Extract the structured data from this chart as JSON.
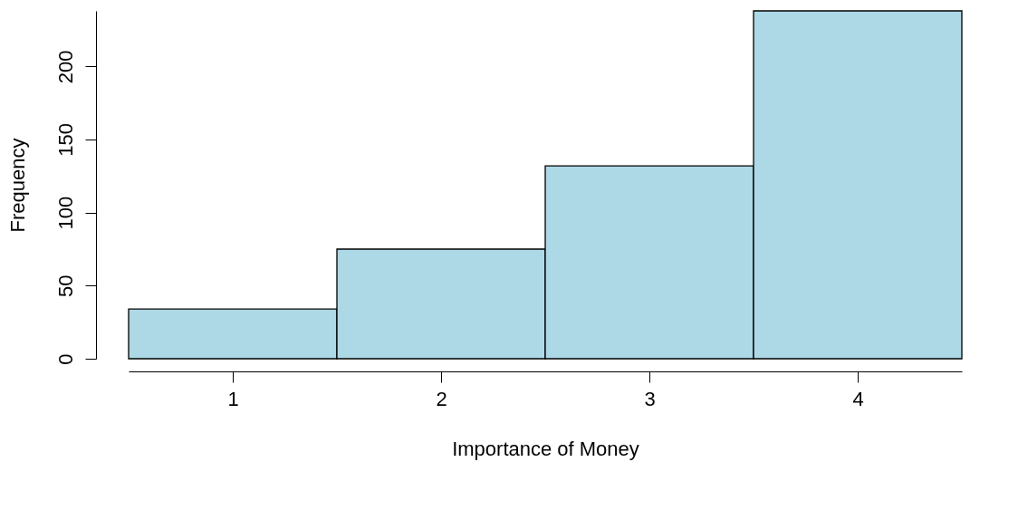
{
  "chart_data": {
    "type": "histogram",
    "xlabel": "Importance of Money",
    "ylabel": "Frequency",
    "bins": [
      0.5,
      1.5,
      2.5,
      3.5,
      4.5
    ],
    "values": [
      34,
      75,
      132,
      238
    ],
    "color": "#add8e6",
    "xlim": [
      0.5,
      4.5
    ],
    "xticks": [
      1,
      2,
      3,
      4
    ],
    "ylim": [
      0,
      238
    ],
    "yticks": [
      0,
      50,
      100,
      150,
      200
    ],
    "grid": false
  }
}
